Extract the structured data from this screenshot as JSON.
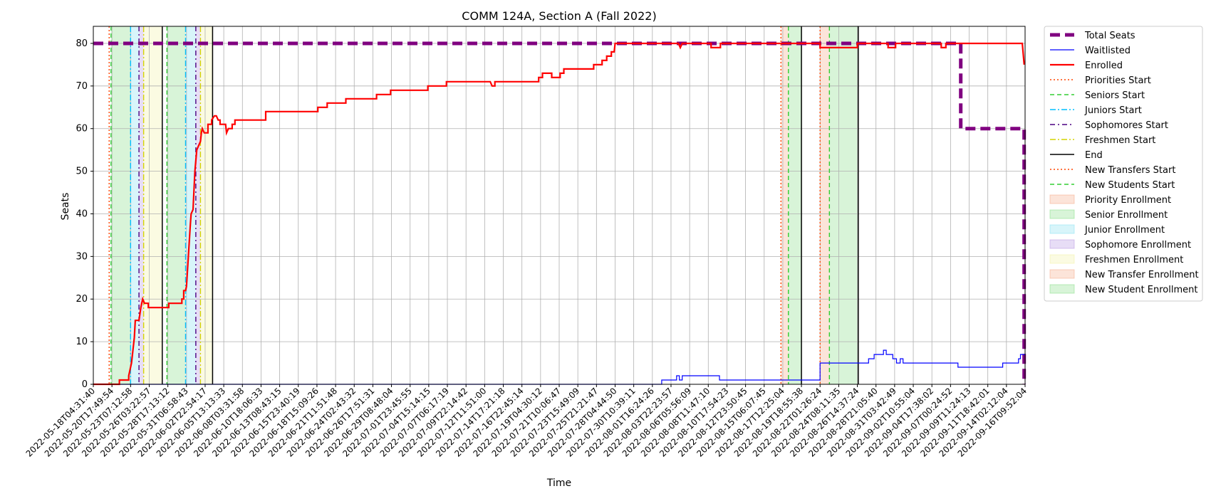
{
  "chart_data": {
    "type": "line",
    "title": "COMM 124A, Section A (Fall 2022)",
    "xlabel": "Time",
    "ylabel": "Seats",
    "ylim": [
      0,
      84
    ],
    "yticks": [
      0,
      10,
      20,
      30,
      40,
      50,
      60,
      70,
      80
    ],
    "grid": true,
    "legend_position": "outside-right",
    "x_ticks": [
      "2022-05-18T04:31:40",
      "2022-05-20T17:49:54",
      "2022-05-23T07:12:58",
      "2022-05-26T03:22:57",
      "2022-05-28T17:13:12",
      "2022-05-31T06:58:43",
      "2022-06-02T22:54:17",
      "2022-06-05T13:13:33",
      "2022-06-08T03:31:58",
      "2022-06-10T18:06:33",
      "2022-06-13T08:43:15",
      "2022-06-15T23:40:19",
      "2022-06-18T15:09:26",
      "2022-06-21T11:51:48",
      "2022-06-24T02:43:32",
      "2022-06-26T17:51:31",
      "2022-06-29T08:48:04",
      "2022-07-01T23:45:55",
      "2022-07-04T15:14:15",
      "2022-07-07T06:17:19",
      "2022-07-09T22:14:42",
      "2022-07-12T11:51:00",
      "2022-07-14T17:21:18",
      "2022-07-16T22:45:14",
      "2022-07-19T04:30:12",
      "2022-07-21T10:06:47",
      "2022-07-23T15:49:09",
      "2022-07-25T21:21:47",
      "2022-07-28T04:44:50",
      "2022-07-30T10:39:11",
      "2022-08-01T16:24:26",
      "2022-08-03T22:23:57",
      "2022-08-06T05:56:09",
      "2022-08-08T11:47:10",
      "2022-08-10T17:54:23",
      "2022-08-12T23:50:45",
      "2022-08-15T06:07:45",
      "2022-08-17T12:25:04",
      "2022-08-19T18:55:38",
      "2022-08-22T01:26:24",
      "2022-08-24T08:11:35",
      "2022-08-26T14:37:24",
      "2022-08-28T21:05:40",
      "2022-08-31T03:42:49",
      "2022-09-02T10:55:04",
      "2022-09-04T17:38:02",
      "2022-09-07T00:24:52",
      "2022-09-09T11:24:13",
      "2022-09-11T18:42:01",
      "2022-09-14T02:12:04",
      "2022-09-16T09:52:04"
    ],
    "x_range": [
      0,
      50
    ],
    "series": [
      {
        "name": "Total Seats",
        "color": "#800080",
        "style": "dashed-thick",
        "points": [
          [
            0,
            80
          ],
          [
            46.55,
            80
          ],
          [
            46.55,
            60
          ],
          [
            49.95,
            60
          ],
          [
            49.95,
            0
          ]
        ]
      },
      {
        "name": "Waitlisted",
        "color": "#0000ff",
        "style": "solid-thin",
        "points": [
          [
            0,
            0
          ],
          [
            30.5,
            0
          ],
          [
            30.5,
            1
          ],
          [
            31.3,
            1
          ],
          [
            31.3,
            2
          ],
          [
            31.45,
            2
          ],
          [
            31.45,
            1
          ],
          [
            31.6,
            1
          ],
          [
            31.6,
            2
          ],
          [
            33.6,
            2
          ],
          [
            33.6,
            1
          ],
          [
            39.0,
            1
          ],
          [
            39.0,
            5
          ],
          [
            41.6,
            5
          ],
          [
            41.6,
            6
          ],
          [
            41.9,
            6
          ],
          [
            41.9,
            7
          ],
          [
            42.4,
            7
          ],
          [
            42.4,
            8
          ],
          [
            42.55,
            8
          ],
          [
            42.55,
            7
          ],
          [
            42.9,
            7
          ],
          [
            42.9,
            6
          ],
          [
            43.1,
            6
          ],
          [
            43.1,
            5
          ],
          [
            43.3,
            5
          ],
          [
            43.3,
            6
          ],
          [
            43.45,
            6
          ],
          [
            43.45,
            5
          ],
          [
            46.4,
            5
          ],
          [
            46.4,
            4
          ],
          [
            48.8,
            4
          ],
          [
            48.8,
            5
          ],
          [
            49.65,
            5
          ],
          [
            49.65,
            6
          ],
          [
            49.75,
            6
          ],
          [
            49.75,
            7
          ],
          [
            50,
            7
          ]
        ]
      },
      {
        "name": "Enrolled",
        "color": "#ff0000",
        "style": "solid",
        "points": [
          [
            0,
            0
          ],
          [
            1.4,
            0
          ],
          [
            1.4,
            1
          ],
          [
            1.9,
            1
          ],
          [
            1.9,
            2
          ],
          [
            2.05,
            5
          ],
          [
            2.2,
            11
          ],
          [
            2.25,
            15
          ],
          [
            2.45,
            15
          ],
          [
            2.55,
            18
          ],
          [
            2.65,
            20
          ],
          [
            2.75,
            19
          ],
          [
            2.95,
            19
          ],
          [
            2.95,
            18
          ],
          [
            4.05,
            18
          ],
          [
            4.05,
            19
          ],
          [
            4.75,
            19
          ],
          [
            4.75,
            20
          ],
          [
            4.85,
            20
          ],
          [
            4.85,
            22
          ],
          [
            4.95,
            22
          ],
          [
            5.0,
            23
          ],
          [
            5.1,
            30
          ],
          [
            5.2,
            37
          ],
          [
            5.25,
            40
          ],
          [
            5.35,
            41
          ],
          [
            5.45,
            50
          ],
          [
            5.55,
            55
          ],
          [
            5.65,
            56
          ],
          [
            5.75,
            57
          ],
          [
            5.8,
            59
          ],
          [
            5.85,
            60
          ],
          [
            5.95,
            59
          ],
          [
            6.15,
            59
          ],
          [
            6.15,
            61
          ],
          [
            6.35,
            61
          ],
          [
            6.35,
            62
          ],
          [
            6.5,
            63
          ],
          [
            6.6,
            63
          ],
          [
            6.7,
            62
          ],
          [
            6.8,
            62
          ],
          [
            6.8,
            61
          ],
          [
            7.1,
            61
          ],
          [
            7.15,
            59
          ],
          [
            7.25,
            60
          ],
          [
            7.45,
            60
          ],
          [
            7.45,
            61
          ],
          [
            7.6,
            61
          ],
          [
            7.6,
            62
          ],
          [
            9.25,
            62
          ],
          [
            9.25,
            64
          ],
          [
            12.05,
            64
          ],
          [
            12.05,
            65
          ],
          [
            12.55,
            65
          ],
          [
            12.55,
            66
          ],
          [
            13.55,
            66
          ],
          [
            13.55,
            67
          ],
          [
            15.2,
            67
          ],
          [
            15.2,
            68
          ],
          [
            15.95,
            68
          ],
          [
            15.95,
            69
          ],
          [
            17.95,
            69
          ],
          [
            17.95,
            70
          ],
          [
            18.95,
            70
          ],
          [
            18.95,
            71
          ],
          [
            21.3,
            71
          ],
          [
            21.4,
            70
          ],
          [
            21.55,
            70
          ],
          [
            21.55,
            71
          ],
          [
            23.9,
            71
          ],
          [
            23.9,
            72
          ],
          [
            24.1,
            72
          ],
          [
            24.1,
            73
          ],
          [
            24.6,
            73
          ],
          [
            24.6,
            72
          ],
          [
            25.05,
            72
          ],
          [
            25.05,
            73
          ],
          [
            25.25,
            73
          ],
          [
            25.25,
            74
          ],
          [
            26.85,
            74
          ],
          [
            26.85,
            75
          ],
          [
            27.3,
            75
          ],
          [
            27.3,
            76
          ],
          [
            27.55,
            76
          ],
          [
            27.55,
            77
          ],
          [
            27.8,
            77
          ],
          [
            27.8,
            78
          ],
          [
            27.95,
            78
          ],
          [
            28.0,
            80
          ],
          [
            31.4,
            80
          ],
          [
            31.5,
            79
          ],
          [
            31.6,
            80
          ],
          [
            33.15,
            80
          ],
          [
            33.15,
            79
          ],
          [
            33.65,
            79
          ],
          [
            33.65,
            80
          ],
          [
            39.0,
            80
          ],
          [
            39.0,
            79
          ],
          [
            41.0,
            79
          ],
          [
            41.0,
            80
          ],
          [
            42.65,
            80
          ],
          [
            42.65,
            79
          ],
          [
            43.05,
            79
          ],
          [
            43.05,
            80
          ],
          [
            45.5,
            80
          ],
          [
            45.5,
            79
          ],
          [
            45.75,
            79
          ],
          [
            45.75,
            80
          ],
          [
            49.85,
            80
          ],
          [
            49.95,
            75
          ]
        ]
      }
    ],
    "event_lines": [
      {
        "name": "Priorities Start",
        "color": "#ff4500",
        "style": "dotted",
        "x": [
          0.85,
          36.9,
          39.0
        ]
      },
      {
        "name": "Seniors Start",
        "color": "#32cd32",
        "style": "dashed",
        "x": [
          0.95,
          3.95,
          37.3,
          39.5
        ]
      },
      {
        "name": "Juniors Start",
        "color": "#00bfff",
        "style": "dashdot",
        "x": [
          2.0,
          4.95
        ]
      },
      {
        "name": "Sophomores Start",
        "color": "#4b0082",
        "style": "dashdot-blue",
        "x": [
          2.45,
          5.5
        ]
      },
      {
        "name": "Freshmen Start",
        "color": "#d4d400",
        "style": "dashdot-yellow",
        "x": [
          2.7,
          5.75
        ]
      },
      {
        "name": "End",
        "color": "#000000",
        "style": "solid",
        "x": [
          3.7,
          6.4,
          38.0,
          41.05
        ]
      },
      {
        "name": "New Transfers Start",
        "color": "#ff4500",
        "style": "dotted",
        "x": []
      },
      {
        "name": "New Students Start",
        "color": "#32cd32",
        "style": "dashed",
        "x": []
      }
    ],
    "enrollment_periods": [
      {
        "name": "Priority Enrollment",
        "color": "#f4a582",
        "ranges": [
          [
            36.9,
            37.3
          ],
          [
            39.0,
            39.5
          ]
        ]
      },
      {
        "name": "Senior Enrollment",
        "color": "#7fd97f",
        "ranges": [
          [
            0.95,
            2.0
          ],
          [
            3.95,
            4.95
          ],
          [
            37.3,
            38.0
          ],
          [
            39.5,
            41.05
          ]
        ]
      },
      {
        "name": "Junior Enrollment",
        "color": "#7fdfef",
        "ranges": [
          [
            2.0,
            2.45
          ],
          [
            4.95,
            5.5
          ]
        ]
      },
      {
        "name": "Sophomore Enrollment",
        "color": "#b18fe0",
        "ranges": [
          [
            2.45,
            2.7
          ],
          [
            5.5,
            5.75
          ]
        ]
      },
      {
        "name": "Freshmen Enrollment",
        "color": "#f2f2a0",
        "ranges": [
          [
            2.7,
            3.7
          ],
          [
            5.75,
            6.4
          ]
        ]
      },
      {
        "name": "New Transfer Enrollment",
        "color": "#f4a582",
        "ranges": []
      },
      {
        "name": "New Student Enrollment",
        "color": "#7fd97f",
        "ranges": []
      }
    ]
  }
}
